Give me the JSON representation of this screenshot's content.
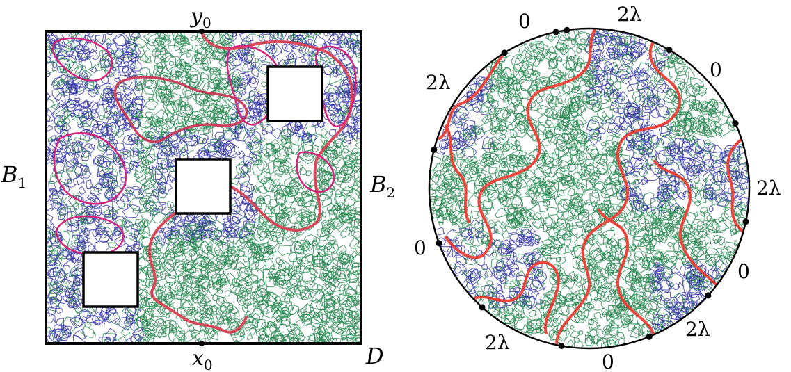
{
  "left_panel": {
    "label_top": "y0",
    "label_top_base": "y",
    "label_top_sub": "0",
    "label_bottom_base": "x",
    "label_bottom_sub": "0",
    "label_left_base": "B",
    "label_left_sub": "1",
    "label_right_base": "B",
    "label_right_sub": "2",
    "label_corner": "D",
    "holes": 3
  },
  "right_panel": {
    "boundary_labels": [
      "0",
      "2λ",
      "0",
      "2λ",
      "0",
      "2λ",
      "0",
      "2λ"
    ],
    "marked_points": 12
  },
  "colors": {
    "frame": "#000000",
    "loop_green": "#2e8b57",
    "loop_blue": "#3a3aa8",
    "curve_magenta": "#d6247a",
    "curve_red": "#e8453c"
  }
}
